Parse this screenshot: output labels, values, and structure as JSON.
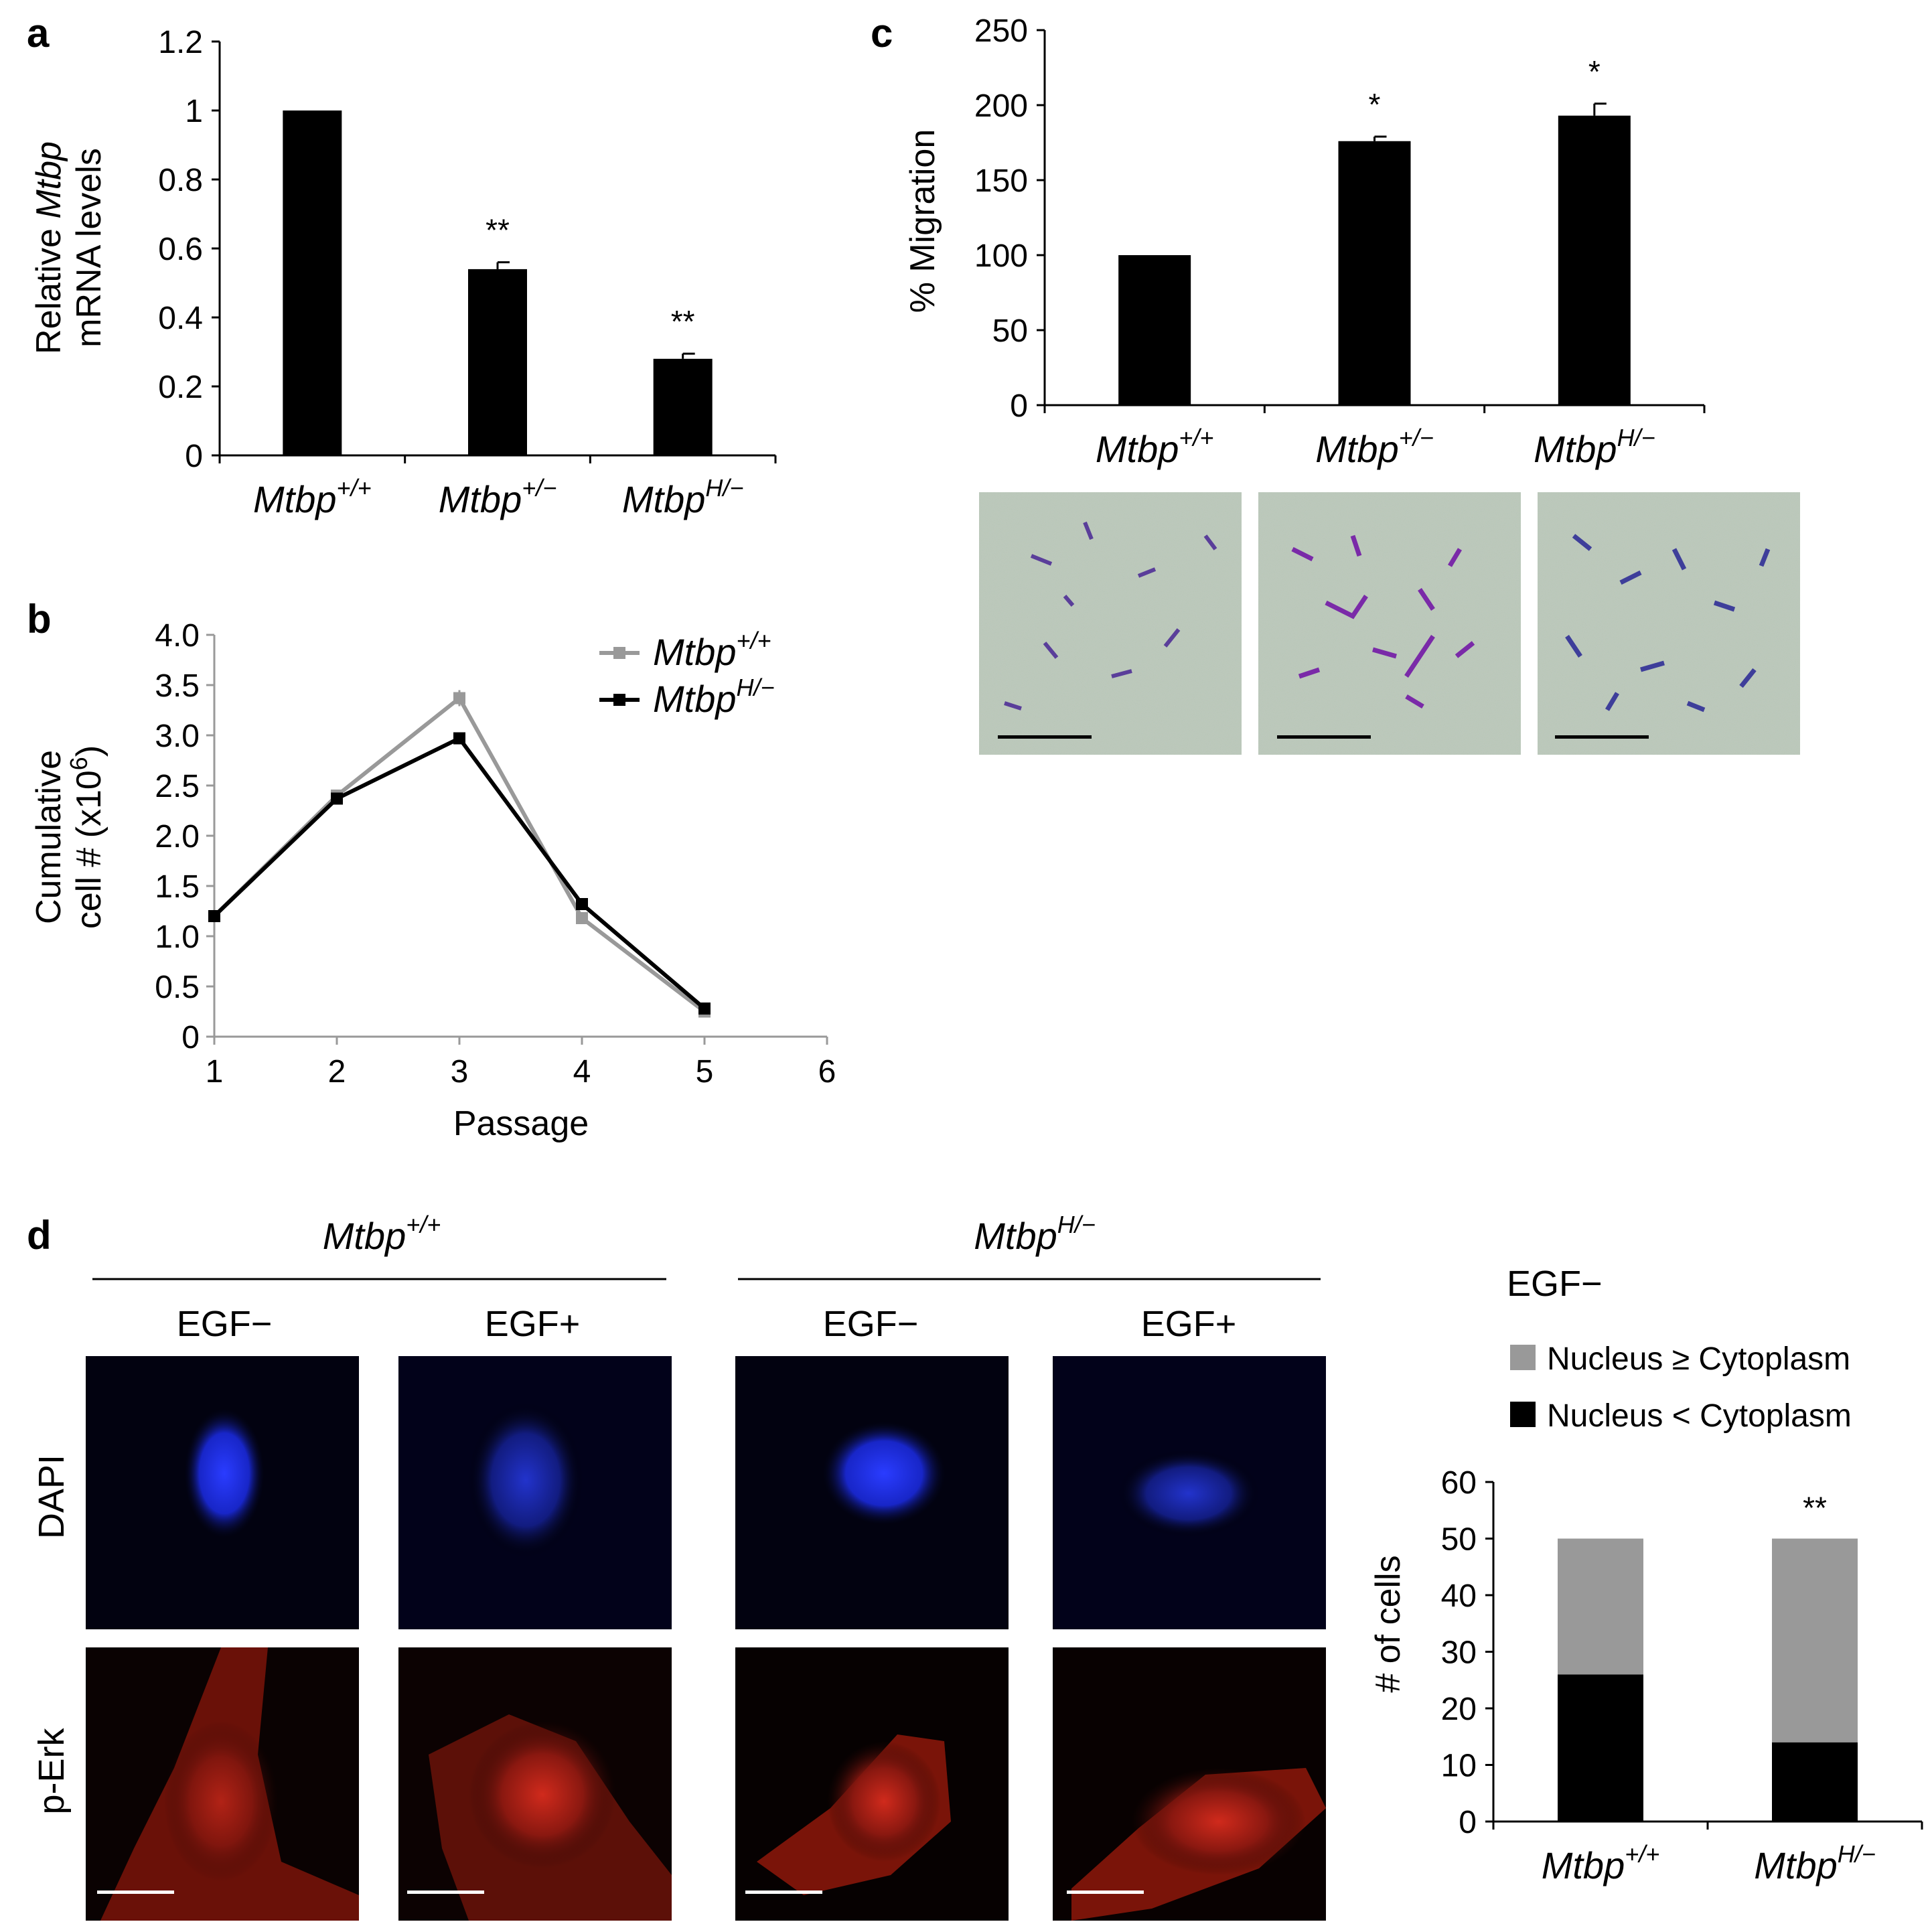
{
  "chart_data": [
    {
      "panel": "a",
      "type": "bar",
      "ylabel_line1": "Relative ",
      "ylabel_line1_gene": "Mtbp",
      "ylabel_line2": "mRNA levels",
      "categories": [
        {
          "gene": "Mtbp",
          "sup": "+/+"
        },
        {
          "gene": "Mtbp",
          "sup": "+/−"
        },
        {
          "gene": "Mtbp",
          "sup": "H/−"
        }
      ],
      "values": [
        1.0,
        0.54,
        0.28
      ],
      "errors": [
        0,
        0.02,
        0.015
      ],
      "annotations": [
        "",
        "**",
        "**"
      ],
      "ylim": [
        0,
        1.2
      ],
      "yticks": [
        "0",
        "0.2",
        "0.4",
        "0.6",
        "0.8",
        "1",
        "1.2"
      ]
    },
    {
      "panel": "b",
      "type": "line",
      "xlabel": "Passage",
      "ylabel_line1": "Cumulative",
      "ylabel_line2": "cell # (x10",
      "ylabel_exp": "6",
      "ylabel_close": ")",
      "x": [
        1,
        2,
        3,
        4,
        5
      ],
      "xlim": [
        1,
        6
      ],
      "xticks": [
        "1",
        "2",
        "3",
        "4",
        "5",
        "6"
      ],
      "ylim": [
        0,
        4.0
      ],
      "yticks": [
        "0",
        "0.5",
        "1.0",
        "1.5",
        "2.0",
        "2.5",
        "3.0",
        "3.5",
        "4.0"
      ],
      "legend_position": "top-right",
      "series": [
        {
          "gene": "Mtbp",
          "sup": "+/+",
          "color": "#999999",
          "values": [
            1.2,
            2.4,
            3.37,
            1.18,
            0.25
          ],
          "errors": [
            0,
            0,
            0.08,
            0.05,
            0.03
          ]
        },
        {
          "gene": "Mtbp",
          "sup": "H/−",
          "color": "#000000",
          "values": [
            1.2,
            2.37,
            2.97,
            1.32,
            0.28
          ],
          "errors": [
            0,
            0,
            0.04,
            0,
            0
          ]
        }
      ]
    },
    {
      "panel": "c",
      "type": "bar",
      "ylabel": "% Migration",
      "categories": [
        {
          "gene": "Mtbp",
          "sup": "+/+"
        },
        {
          "gene": "Mtbp",
          "sup": "+/−"
        },
        {
          "gene": "Mtbp",
          "sup": "H/−"
        }
      ],
      "values": [
        100,
        176,
        193
      ],
      "errors": [
        0,
        3,
        8
      ],
      "annotations": [
        "",
        "*",
        "*"
      ],
      "ylim": [
        0,
        250
      ],
      "yticks": [
        "0",
        "50",
        "100",
        "150",
        "200",
        "250"
      ]
    },
    {
      "panel": "d",
      "type": "bar",
      "stacked": true,
      "title": "EGF−",
      "ylabel": "# of cells",
      "categories": [
        {
          "gene": "Mtbp",
          "sup": "+/+"
        },
        {
          "gene": "Mtbp",
          "sup": "H/−"
        }
      ],
      "series": [
        {
          "name": "Nucleus < Cytoplasm",
          "color": "#000000",
          "values": [
            26,
            14
          ]
        },
        {
          "name": "Nucleus ≥ Cytoplasm",
          "color": "#999999",
          "values": [
            24,
            36
          ]
        }
      ],
      "legend_order": [
        "Nucleus ≥ Cytoplasm",
        "Nucleus < Cytoplasm"
      ],
      "annotations": [
        "",
        "**"
      ],
      "ylim": [
        0,
        60
      ],
      "yticks": [
        "0",
        "10",
        "20",
        "30",
        "40",
        "50",
        "60"
      ]
    }
  ],
  "panels": {
    "a": "a",
    "b": "b",
    "c": "c",
    "d": "d"
  },
  "micrographs_c": {
    "description_colors": {
      "background": "#b9c6b6",
      "stain": "#5a3e9a"
    },
    "count": 3
  },
  "panel_d_images": {
    "group_headers": [
      {
        "gene": "Mtbp",
        "sup": "+/+"
      },
      {
        "gene": "Mtbp",
        "sup": "H/−"
      }
    ],
    "column_headers": [
      "EGF−",
      "EGF+",
      "EGF−",
      "EGF+"
    ],
    "row_labels": [
      "DAPI",
      "p-Erk"
    ],
    "colors": {
      "dapi": "#1a2aff",
      "perk": "#c0201a"
    }
  }
}
